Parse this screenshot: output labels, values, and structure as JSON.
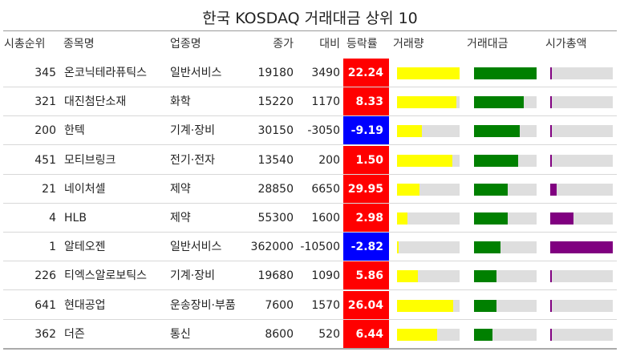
{
  "chart_data": {
    "type": "table",
    "title": "한국 KOSDAQ 거래대금 상위 10",
    "columns": [
      "시총순위",
      "종목명",
      "업종명",
      "종가",
      "대비",
      "등락률",
      "거래량",
      "거래대금",
      "시가총액"
    ],
    "bar_columns": [
      "거래량",
      "거래대금",
      "시가총액"
    ],
    "colors": {
      "up": "#ff0000",
      "down": "#0000ff",
      "volume": "#ffff00",
      "value": "#008000",
      "mcap": "#800080",
      "track": "#dedede"
    },
    "rows": [
      {
        "rank": "345",
        "name": "온코닉테라퓨틱스",
        "sector": "일반서비스",
        "close": "19180",
        "diff": "3490",
        "rate": "22.24",
        "volume": 1.0,
        "value": 1.0,
        "mcap": 0.015
      },
      {
        "rank": "321",
        "name": "대진첨단소재",
        "sector": "화학",
        "close": "15220",
        "diff": "1170",
        "rate": "8.33",
        "volume": 0.95,
        "value": 0.8,
        "mcap": 0.015
      },
      {
        "rank": "200",
        "name": "한텍",
        "sector": "기계·장비",
        "close": "30150",
        "diff": "-3050",
        "rate": "-9.19",
        "volume": 0.4,
        "value": 0.73,
        "mcap": 0.02
      },
      {
        "rank": "451",
        "name": "모티브링크",
        "sector": "전기·전자",
        "close": "13540",
        "diff": "200",
        "rate": "1.50",
        "volume": 0.88,
        "value": 0.7,
        "mcap": 0.01
      },
      {
        "rank": "21",
        "name": "네이처셀",
        "sector": "제약",
        "close": "28850",
        "diff": "6650",
        "rate": "29.95",
        "volume": 0.36,
        "value": 0.54,
        "mcap": 0.1
      },
      {
        "rank": "4",
        "name": "HLB",
        "sector": "제약",
        "close": "55300",
        "diff": "1600",
        "rate": "2.98",
        "volume": 0.17,
        "value": 0.54,
        "mcap": 0.37
      },
      {
        "rank": "1",
        "name": "알테오젠",
        "sector": "일반서비스",
        "close": "362000",
        "diff": "-10500",
        "rate": "-2.82",
        "volume": 0.03,
        "value": 0.42,
        "mcap": 1.0
      },
      {
        "rank": "226",
        "name": "티엑스알로보틱스",
        "sector": "기계·장비",
        "close": "19680",
        "diff": "1090",
        "rate": "5.86",
        "volume": 0.33,
        "value": 0.36,
        "mcap": 0.015
      },
      {
        "rank": "641",
        "name": "현대공업",
        "sector": "운송장비·부품",
        "close": "7600",
        "diff": "1570",
        "rate": "26.04",
        "volume": 0.9,
        "value": 0.36,
        "mcap": 0.01
      },
      {
        "rank": "362",
        "name": "더즌",
        "sector": "통신",
        "close": "8600",
        "diff": "520",
        "rate": "6.44",
        "volume": 0.64,
        "value": 0.29,
        "mcap": 0.01
      }
    ]
  }
}
